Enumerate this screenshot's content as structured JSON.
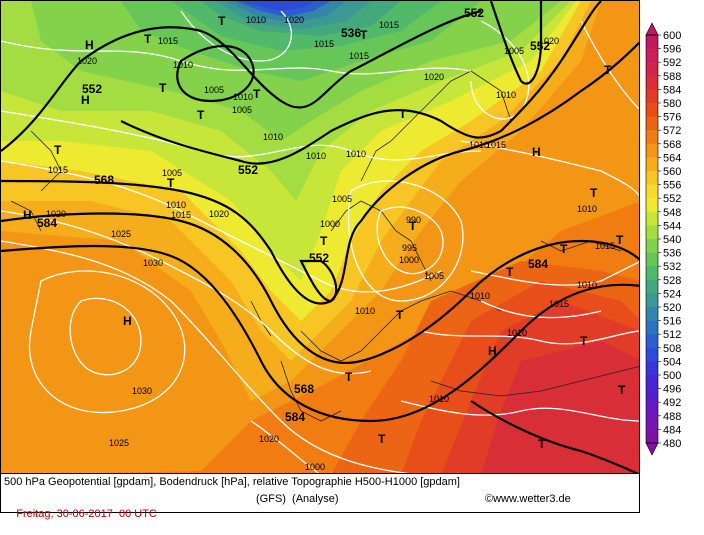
{
  "legend": {
    "ticks": [
      "600",
      "596",
      "592",
      "588",
      "584",
      "580",
      "576",
      "572",
      "568",
      "564",
      "560",
      "556",
      "552",
      "548",
      "544",
      "540",
      "536",
      "532",
      "528",
      "524",
      "520",
      "516",
      "512",
      "508",
      "504",
      "500",
      "496",
      "492",
      "488",
      "484",
      "480"
    ],
    "colors": [
      "#c1185e",
      "#c8205a",
      "#d0254a",
      "#d82e38",
      "#e03c28",
      "#e74e1a",
      "#ec6514",
      "#f07c12",
      "#f39515",
      "#f6ad1c",
      "#f8c624",
      "#f7dc2c",
      "#eeea32",
      "#c8e63a",
      "#a4dd42",
      "#84d24c",
      "#66c658",
      "#52b86a",
      "#44a87e",
      "#3b9892",
      "#3486a8",
      "#2f72be",
      "#2c5ed0",
      "#2e49dc",
      "#3636dc",
      "#4428d6",
      "#5520cc",
      "#661ac0",
      "#7415b4",
      "#8010a6"
    ]
  },
  "map": {
    "center_labels": [
      {
        "text": "H"
      },
      {
        "text": "H"
      },
      {
        "text": "H"
      },
      {
        "text": "H"
      },
      {
        "text": "H"
      },
      {
        "text": "H"
      },
      {
        "text": "T"
      },
      {
        "text": "T"
      },
      {
        "text": "T"
      },
      {
        "text": "T"
      },
      {
        "text": "T"
      },
      {
        "text": "T"
      },
      {
        "text": "T"
      },
      {
        "text": "T"
      },
      {
        "text": "T"
      },
      {
        "text": "T"
      },
      {
        "text": "T"
      },
      {
        "text": "T"
      },
      {
        "text": "T"
      },
      {
        "text": "T"
      },
      {
        "text": "T"
      },
      {
        "text": "T"
      },
      {
        "text": "T"
      },
      {
        "text": "T"
      },
      {
        "text": "T"
      },
      {
        "text": "T"
      },
      {
        "text": "T"
      },
      {
        "text": "T"
      }
    ],
    "geopotential_labels": [
      {
        "text": "552"
      },
      {
        "text": "552"
      },
      {
        "text": "552"
      },
      {
        "text": "552"
      },
      {
        "text": "552"
      },
      {
        "text": "536"
      },
      {
        "text": "568"
      },
      {
        "text": "568"
      },
      {
        "text": "584"
      },
      {
        "text": "584"
      },
      {
        "text": "584"
      }
    ],
    "pressure_labels": [
      {
        "text": "1010"
      },
      {
        "text": "1020"
      },
      {
        "text": "1015"
      },
      {
        "text": "1010"
      },
      {
        "text": "1015"
      },
      {
        "text": "1005"
      },
      {
        "text": "1020"
      },
      {
        "text": "1010"
      },
      {
        "text": "1005"
      },
      {
        "text": "1005"
      },
      {
        "text": "1010"
      },
      {
        "text": "1020"
      },
      {
        "text": "1015"
      },
      {
        "text": "1015"
      },
      {
        "text": "1010"
      },
      {
        "text": "1010"
      },
      {
        "text": "1005"
      },
      {
        "text": "1010"
      },
      {
        "text": "1010"
      },
      {
        "text": "1015"
      },
      {
        "text": "1005"
      },
      {
        "text": "1010"
      },
      {
        "text": "1015"
      },
      {
        "text": "1020"
      },
      {
        "text": "1020"
      },
      {
        "text": "1025"
      },
      {
        "text": "1030"
      },
      {
        "text": "1000"
      },
      {
        "text": "995"
      },
      {
        "text": "1000"
      },
      {
        "text": "990"
      },
      {
        "text": "1005"
      },
      {
        "text": "1010"
      },
      {
        "text": "1010"
      },
      {
        "text": "1015"
      },
      {
        "text": "1010"
      },
      {
        "text": "1015"
      },
      {
        "text": "1010"
      },
      {
        "text": "1030"
      },
      {
        "text": "1025"
      },
      {
        "text": "1020"
      },
      {
        "text": "1010"
      },
      {
        "text": "1020"
      },
      {
        "text": "1010"
      },
      {
        "text": "1000"
      },
      {
        "text": "1015"
      }
    ]
  },
  "footer": {
    "title": "500 hPa Geopotential [gpdam], Bodendruck [hPa], relative Topographie H500-H1000 [gpdam]",
    "date": "Freitag, 30-06-2017  00 UTC",
    "source": "(GFS)  (Analyse)",
    "copyright": "©www.wetter3.de"
  }
}
